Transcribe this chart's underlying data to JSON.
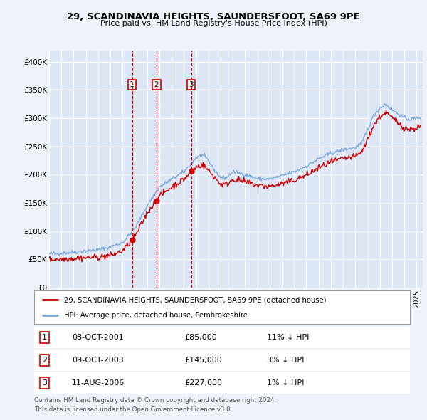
{
  "title": "29, SCANDINAVIA HEIGHTS, SAUNDERSFOOT, SA69 9PE",
  "subtitle": "Price paid vs. HM Land Registry's House Price Index (HPI)",
  "hpi_color": "#7aaadd",
  "price_color": "#cc0000",
  "marker_color": "#cc0000",
  "background_color": "#eef2fb",
  "plot_bg_color": "#dde6f5",
  "grid_color": "#ffffff",
  "transactions": [
    {
      "label": "1",
      "date_str": "08-OCT-2001",
      "date_x": 2001.77,
      "price": 85000,
      "hpi_pct": "11%"
    },
    {
      "label": "2",
      "date_str": "09-OCT-2003",
      "date_x": 2003.77,
      "price": 145000,
      "hpi_pct": "3%"
    },
    {
      "label": "3",
      "date_str": "11-AUG-2006",
      "date_x": 2006.61,
      "price": 227000,
      "hpi_pct": "1%"
    }
  ],
  "legend_line1": "29, SCANDINAVIA HEIGHTS, SAUNDERSFOOT, SA69 9PE (detached house)",
  "legend_line2": "HPI: Average price, detached house, Pembrokeshire",
  "footer1": "Contains HM Land Registry data © Crown copyright and database right 2024.",
  "footer2": "This data is licensed under the Open Government Licence v3.0.",
  "xlim": [
    1995,
    2025.5
  ],
  "ylim": [
    0,
    420000
  ],
  "yticks": [
    0,
    50000,
    100000,
    150000,
    200000,
    250000,
    300000,
    350000,
    400000
  ],
  "ytick_labels": [
    "£0",
    "£50K",
    "£100K",
    "£150K",
    "£200K",
    "£250K",
    "£300K",
    "£350K",
    "£400K"
  ]
}
